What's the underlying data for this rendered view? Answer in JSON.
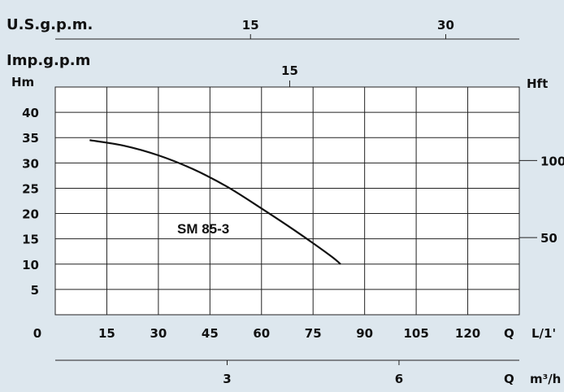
{
  "chart_data": {
    "type": "line",
    "x_axis": {
      "unit": "L/1'",
      "q_label": "Q",
      "ticks": [
        "0",
        "15",
        "30",
        "45",
        "60",
        "75",
        "90",
        "105",
        "120"
      ],
      "range": [
        0,
        135
      ]
    },
    "y_axis_left": {
      "unit": "Hm",
      "ticks": [
        "5",
        "10",
        "15",
        "20",
        "25",
        "30",
        "35",
        "40"
      ],
      "range": [
        0,
        45
      ]
    },
    "y_axis_right": {
      "unit": "Hft",
      "ticks": [
        {
          "label": "50",
          "value_m": 15.24
        },
        {
          "label": "100",
          "value_m": 30.48
        }
      ]
    },
    "top_axis_usgpm": {
      "unit": "U.S.g.p.m.",
      "ticks": [
        {
          "label": "15",
          "value_lpm": 56.8
        },
        {
          "label": "30",
          "value_lpm": 113.6
        }
      ]
    },
    "top_axis_impgpm": {
      "unit": "Imp.g.p.m",
      "ticks": [
        {
          "label": "15",
          "value_lpm": 68.2
        }
      ]
    },
    "bottom_axis_m3h": {
      "unit": "m³/h",
      "q_label": "Q",
      "ticks": [
        {
          "label": "3",
          "value_lpm": 50
        },
        {
          "label": "6",
          "value_lpm": 100
        }
      ]
    },
    "series": [
      {
        "name": "SM 85-3",
        "x": [
          10,
          20,
          30,
          40,
          50,
          60,
          70,
          80,
          83
        ],
        "y": [
          34.5,
          33.4,
          31.5,
          28.8,
          25.3,
          21.0,
          16.5,
          11.7,
          10.0
        ]
      }
    ],
    "grid": true,
    "colors": {
      "background": "#dde7ee",
      "plot_bg": "#ffffff",
      "line": "#111111"
    }
  }
}
